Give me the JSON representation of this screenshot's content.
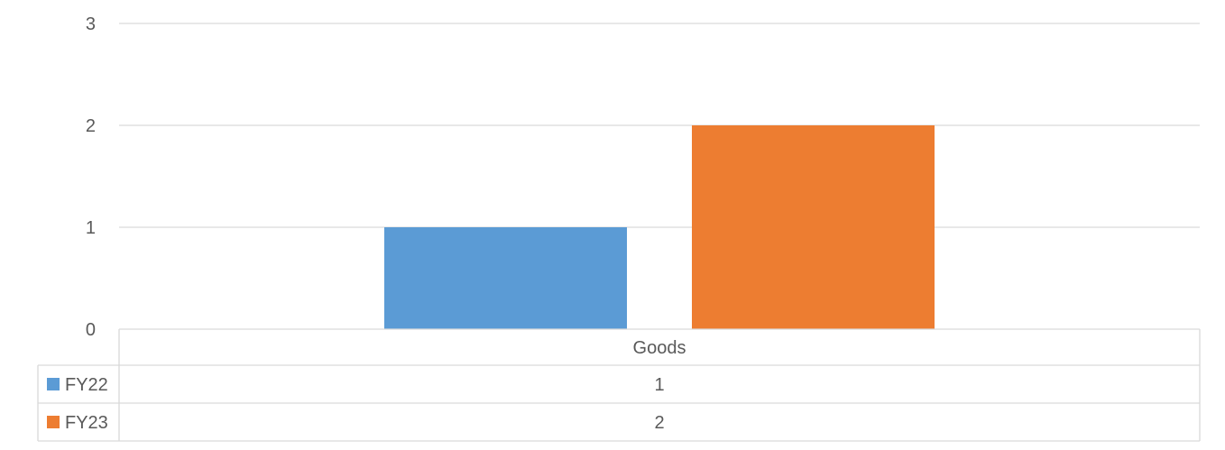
{
  "chart_data": {
    "type": "bar",
    "title": "",
    "xlabel": "",
    "ylabel": "",
    "categories": [
      "Goods"
    ],
    "series": [
      {
        "name": "FY22",
        "values": [
          1
        ],
        "color": "#5b9bd5"
      },
      {
        "name": "FY23",
        "values": [
          2
        ],
        "color": "#ed7d31"
      }
    ],
    "ylim": [
      0,
      3
    ],
    "yticks": [
      "0",
      "1",
      "2",
      "3"
    ],
    "grid": true,
    "legend": "data-table",
    "data_table": {
      "rows": [
        {
          "series": "FY22",
          "values": [
            "1"
          ]
        },
        {
          "series": "FY23",
          "values": [
            "2"
          ]
        }
      ]
    }
  }
}
